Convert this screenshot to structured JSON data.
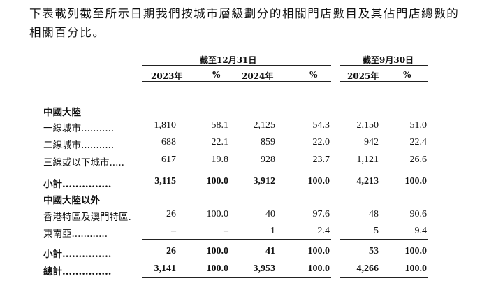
{
  "intro_text": "下表載列截至所示日期我們按城市層級劃分的相關門店數目及其佔門店總數的相關百分比。",
  "header": {
    "group1": "截至12月31日",
    "group2": "截至9月30日",
    "columns": [
      "2023年",
      "%",
      "2024年",
      "%",
      "2025年",
      "%"
    ]
  },
  "sections": {
    "mainland": "中國大陸",
    "outside": "中國大陸以外"
  },
  "rows": {
    "tier1": {
      "label": "一線城市",
      "dots": "...........",
      "values": [
        "1,810",
        "58.1",
        "2,125",
        "54.3",
        "2,150",
        "51.0"
      ]
    },
    "tier2": {
      "label": "二線城市",
      "dots": "...........",
      "values": [
        "688",
        "22.1",
        "859",
        "22.0",
        "942",
        "22.4"
      ]
    },
    "tier3": {
      "label": "三線或以下城市",
      "dots": ".....",
      "values": [
        "617",
        "19.8",
        "928",
        "23.7",
        "1,121",
        "26.6"
      ]
    },
    "subtotal1": {
      "label": "小計",
      "dots": "...............",
      "values": [
        "3,115",
        "100.0",
        "3,912",
        "100.0",
        "4,213",
        "100.0"
      ]
    },
    "hkmacau": {
      "label": "香港特區及澳門特區",
      "dots": ".",
      "values": [
        "26",
        "100.0",
        "40",
        "97.6",
        "48",
        "90.6"
      ]
    },
    "sea": {
      "label": "東南亞",
      "dots": "............",
      "values": [
        "–",
        "–",
        "1",
        "2.4",
        "5",
        "9.4"
      ]
    },
    "subtotal2": {
      "label": "小計",
      "dots": "...............",
      "values": [
        "26",
        "100.0",
        "41",
        "100.0",
        "53",
        "100.0"
      ]
    },
    "total": {
      "label": "總計",
      "dots": "...............",
      "values": [
        "3,141",
        "100.0",
        "3,953",
        "100.0",
        "4,266",
        "100.0"
      ]
    }
  }
}
